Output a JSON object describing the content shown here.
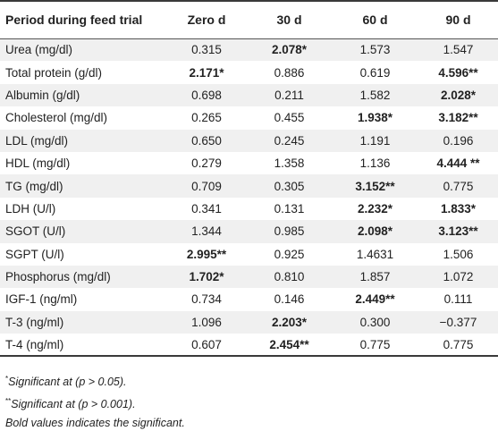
{
  "table": {
    "columns": [
      "Period during feed trial",
      "Zero d",
      "30 d",
      "60 d",
      "90 d"
    ],
    "rows": [
      {
        "parameter": "Urea (mg/dl)",
        "values": [
          "0.315",
          "2.078*",
          "1.573",
          "1.547"
        ],
        "bold": [
          false,
          true,
          false,
          false
        ]
      },
      {
        "parameter": "Total protein (g/dl)",
        "values": [
          "2.171*",
          "0.886",
          "0.619",
          "4.596**"
        ],
        "bold": [
          true,
          false,
          false,
          true
        ]
      },
      {
        "parameter": "Albumin (g/dl)",
        "values": [
          "0.698",
          "0.211",
          "1.582",
          "2.028*"
        ],
        "bold": [
          false,
          false,
          false,
          true
        ]
      },
      {
        "parameter": "Cholesterol (mg/dl)",
        "values": [
          "0.265",
          "0.455",
          "1.938*",
          "3.182**"
        ],
        "bold": [
          false,
          false,
          true,
          true
        ]
      },
      {
        "parameter": "LDL (mg/dl)",
        "values": [
          "0.650",
          "0.245",
          "1.191",
          "0.196"
        ],
        "bold": [
          false,
          false,
          false,
          false
        ]
      },
      {
        "parameter": "HDL (mg/dl)",
        "values": [
          "0.279",
          "1.358",
          "1.136",
          "4.444 **"
        ],
        "bold": [
          false,
          false,
          false,
          true
        ]
      },
      {
        "parameter": "TG (mg/dl)",
        "values": [
          "0.709",
          "0.305",
          "3.152**",
          "0.775"
        ],
        "bold": [
          false,
          false,
          true,
          false
        ]
      },
      {
        "parameter": "LDH (U/l)",
        "values": [
          "0.341",
          "0.131",
          "2.232*",
          "1.833*"
        ],
        "bold": [
          false,
          false,
          true,
          true
        ]
      },
      {
        "parameter": "SGOT (U/l)",
        "values": [
          "1.344",
          "0.985",
          "2.098*",
          "3.123**"
        ],
        "bold": [
          false,
          false,
          true,
          true
        ]
      },
      {
        "parameter": "SGPT (U/l)",
        "values": [
          "2.995**",
          "0.925",
          "1.4631",
          "1.506"
        ],
        "bold": [
          true,
          false,
          false,
          false
        ]
      },
      {
        "parameter": "Phosphorus (mg/dl)",
        "values": [
          "1.702*",
          "0.810",
          "1.857",
          "1.072"
        ],
        "bold": [
          true,
          false,
          false,
          false
        ]
      },
      {
        "parameter": "IGF-1 (ng/ml)",
        "values": [
          "0.734",
          "0.146",
          "2.449**",
          "0.111"
        ],
        "bold": [
          false,
          false,
          true,
          false
        ]
      },
      {
        "parameter": "T-3 (ng/ml)",
        "values": [
          "1.096",
          "2.203*",
          "0.300",
          "−0.377"
        ],
        "bold": [
          false,
          true,
          false,
          false
        ]
      },
      {
        "parameter": "T-4 (ng/ml)",
        "values": [
          "0.607",
          "2.454**",
          "0.775",
          "0.775"
        ],
        "bold": [
          false,
          true,
          false,
          false
        ]
      }
    ]
  },
  "footnotes": [
    {
      "mark": "*",
      "text": "Significant at (p > 0.05)."
    },
    {
      "mark": "**",
      "text": "Significant at (p > 0.001)."
    },
    {
      "mark": "",
      "text": "Bold values indicates the significant."
    }
  ]
}
